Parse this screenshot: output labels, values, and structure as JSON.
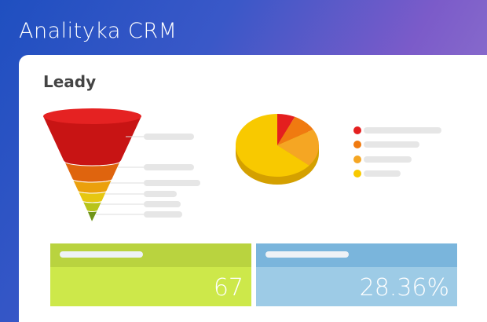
{
  "header": {
    "title": "Analityka CRM"
  },
  "card": {
    "title": "Leady",
    "tiles": [
      {
        "value": "67"
      },
      {
        "value": "28.36%"
      }
    ]
  }
}
